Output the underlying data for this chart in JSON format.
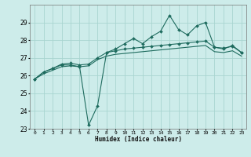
{
  "xlabel": "Humidex (Indice chaleur)",
  "ylabel": "",
  "x": [
    0,
    1,
    2,
    3,
    4,
    5,
    6,
    7,
    8,
    9,
    10,
    11,
    12,
    13,
    14,
    15,
    16,
    17,
    18,
    19,
    20,
    21,
    22,
    23
  ],
  "line1": [
    25.8,
    26.2,
    26.4,
    26.6,
    26.6,
    26.5,
    23.2,
    24.3,
    27.3,
    27.5,
    27.8,
    28.1,
    27.8,
    28.2,
    28.5,
    29.4,
    28.6,
    28.3,
    28.8,
    29.0,
    27.6,
    27.5,
    27.7,
    27.3
  ],
  "line2": [
    25.8,
    26.2,
    26.4,
    26.65,
    26.7,
    26.6,
    26.65,
    27.0,
    27.3,
    27.4,
    27.5,
    27.55,
    27.6,
    27.65,
    27.7,
    27.75,
    27.8,
    27.85,
    27.9,
    27.95,
    27.6,
    27.55,
    27.65,
    27.3
  ],
  "line3": [
    25.8,
    26.1,
    26.3,
    26.5,
    26.55,
    26.5,
    26.55,
    26.9,
    27.1,
    27.2,
    27.25,
    27.3,
    27.35,
    27.4,
    27.45,
    27.5,
    27.55,
    27.6,
    27.65,
    27.7,
    27.35,
    27.3,
    27.4,
    27.1
  ],
  "line_color": "#1e6b5e",
  "bg_color": "#cdecea",
  "grid_color": "#a8d5d0",
  "ylim": [
    23,
    30
  ],
  "yticks": [
    23,
    24,
    25,
    26,
    27,
    28,
    29
  ],
  "marker": "D",
  "markersize": 2.0,
  "linewidth": 0.8
}
